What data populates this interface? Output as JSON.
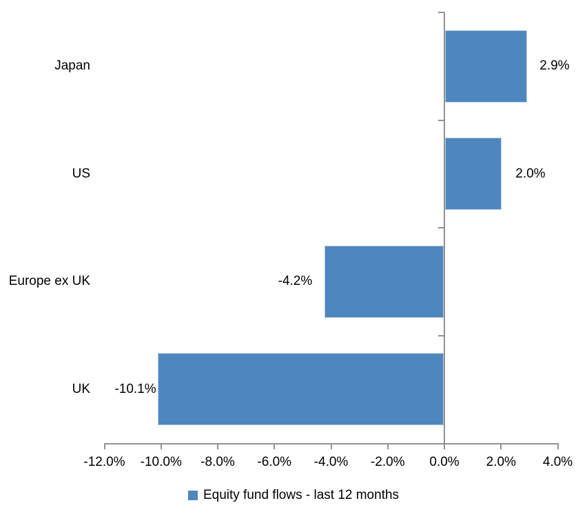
{
  "chart_data": {
    "type": "bar",
    "orientation": "horizontal",
    "title": "",
    "categories": [
      "Japan",
      "US",
      "Europe ex UK",
      "UK"
    ],
    "values": [
      2.9,
      2.0,
      -4.2,
      -10.1
    ],
    "data_labels": [
      "2.9%",
      "2.0%",
      "-4.2%",
      "-10.1%"
    ],
    "series_name": "Equity fund flows - last 12 months",
    "xlim": [
      -12,
      4
    ],
    "x_tick_step": 2,
    "x_tick_labels": [
      "-12.0%",
      "-10.0%",
      "-8.0%",
      "-6.0%",
      "-4.0%",
      "-2.0%",
      "0.0%",
      "2.0%",
      "4.0%"
    ],
    "grid": false,
    "legend_position": "bottom",
    "colors": {
      "bar_fill": "#4e87be",
      "bar_border": "#b9cfe2",
      "axis_line": "#909090",
      "text": "#000000"
    }
  }
}
